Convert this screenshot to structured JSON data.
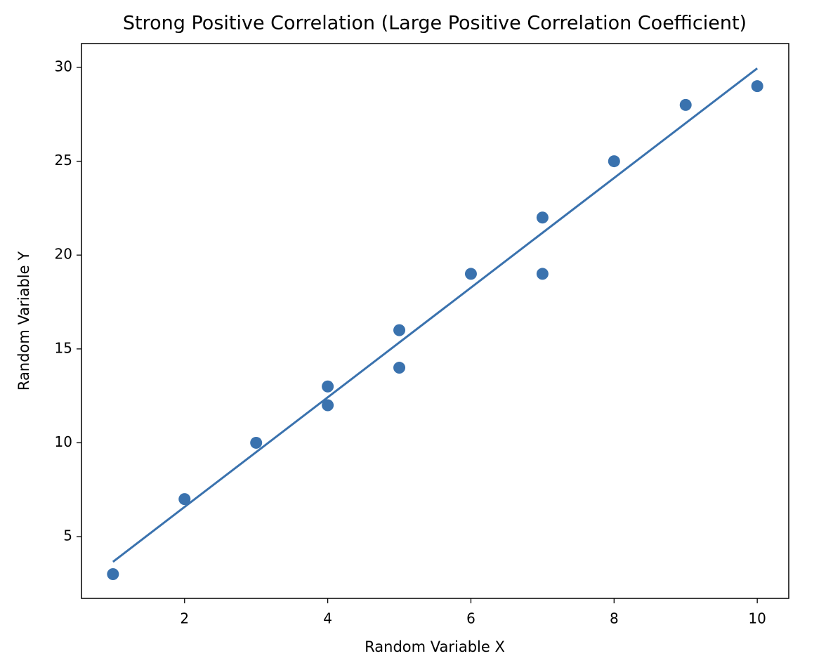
{
  "chart_data": {
    "type": "scatter",
    "title": "Strong Positive Correlation (Large Positive Correlation Coefficient)",
    "x_label": "Random Variable X",
    "y_label": "Random Variable Y",
    "series": [
      {
        "type": "scatter",
        "color": "#3a72ae",
        "x": [
          1,
          2,
          3,
          4,
          4,
          5,
          5,
          6,
          7,
          7,
          8,
          9,
          10
        ],
        "values": [
          3,
          7,
          10,
          13,
          12,
          16,
          14,
          19,
          22,
          19,
          25,
          28,
          29
        ]
      },
      {
        "type": "line",
        "color": "#3a72ae",
        "x": [
          1,
          10
        ],
        "values": [
          3.66,
          29.95
        ]
      }
    ],
    "xlim": [
      0.56,
      10.44
    ],
    "ylim": [
      1.71,
      31.27
    ],
    "xticks": [
      2,
      4,
      6,
      8,
      10
    ],
    "yticks": [
      5,
      10,
      15,
      20,
      25,
      30
    ],
    "grid": false
  }
}
